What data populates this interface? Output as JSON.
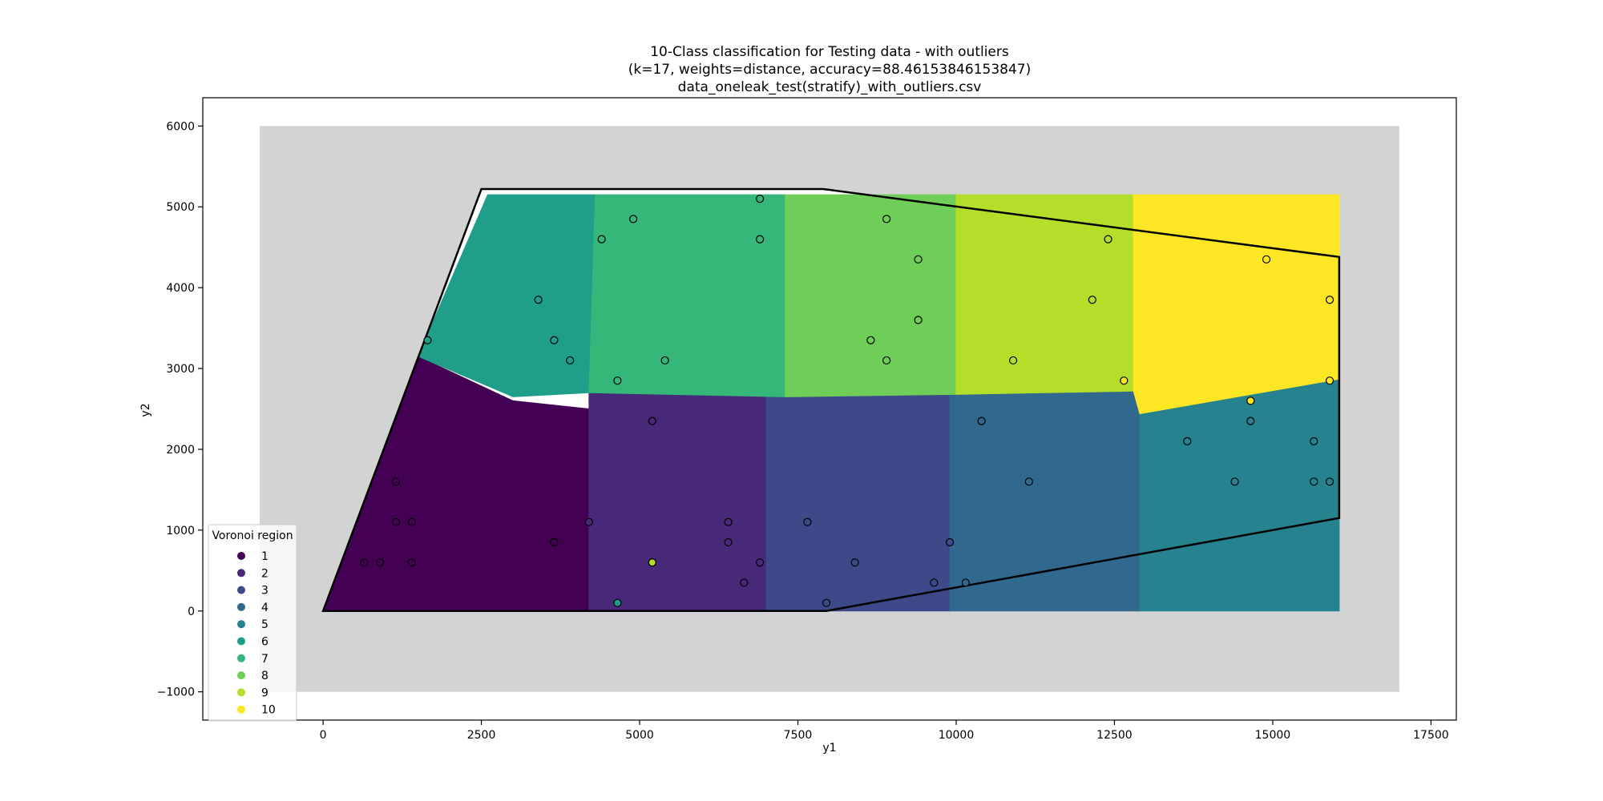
{
  "chart_data": {
    "type": "scatter",
    "title": "10-Class classification for Testing data - with outliers",
    "subtitle": "(k=17, weights=distance, accuracy=88.46153846153847)",
    "caption": "data_oneleak_test(stratify)_with_outliers.csv",
    "xlabel": "y1",
    "ylabel": "y2",
    "xlim": [
      -1900,
      17900
    ],
    "ylim": [
      -1350,
      6350
    ],
    "x_ticks": [
      0,
      2500,
      5000,
      7500,
      10000,
      12500,
      15000,
      17500
    ],
    "x_tick_labels": [
      "0",
      "2500",
      "5000",
      "7500",
      "10000",
      "12500",
      "15000",
      "17500"
    ],
    "y_ticks": [
      -1000,
      0,
      1000,
      2000,
      3000,
      4000,
      5000,
      6000
    ],
    "y_tick_labels": [
      "−1000",
      "0",
      "1000",
      "2000",
      "3000",
      "4000",
      "5000",
      "6000"
    ],
    "grid": false,
    "background_region": {
      "x": [
        -1000,
        17000
      ],
      "y": [
        -1000,
        6000
      ],
      "color": "#d3d3d3"
    },
    "boundary_polygon": [
      [
        0,
        0
      ],
      [
        2500,
        5220
      ],
      [
        7900,
        5220
      ],
      [
        16050,
        4380
      ],
      [
        16050,
        1150
      ],
      [
        7950,
        0
      ]
    ],
    "legend": {
      "title": "Voronoi region",
      "placement": "lower-left",
      "entries": [
        "1",
        "2",
        "3",
        "4",
        "5",
        "6",
        "7",
        "8",
        "9",
        "10"
      ]
    },
    "class_colors": {
      "1": "#440154",
      "2": "#482878",
      "3": "#3e4989",
      "4": "#31688e",
      "5": "#26828e",
      "6": "#1f9e89",
      "7": "#35b779",
      "8": "#6ece58",
      "9": "#b5de2b",
      "10": "#fde725"
    },
    "regions": [
      {
        "class": "1",
        "polygon": [
          [
            0,
            0
          ],
          [
            4200,
            0
          ],
          [
            4200,
            2500
          ],
          [
            3000,
            2600
          ],
          [
            1500,
            3150
          ],
          [
            1500,
            3150
          ]
        ]
      },
      {
        "class": "2",
        "polygon": [
          [
            4200,
            0
          ],
          [
            7000,
            0
          ],
          [
            7000,
            2700
          ],
          [
            4200,
            2700
          ]
        ]
      },
      {
        "class": "3",
        "polygon": [
          [
            7000,
            0
          ],
          [
            9900,
            0
          ],
          [
            10000,
            800
          ],
          [
            9900,
            2700
          ],
          [
            7000,
            2700
          ]
        ]
      },
      {
        "class": "4",
        "polygon": [
          [
            9900,
            0
          ],
          [
            12900,
            0
          ],
          [
            12900,
            2720
          ],
          [
            9900,
            2720
          ]
        ]
      },
      {
        "class": "5",
        "polygon": [
          [
            12900,
            0
          ],
          [
            16050,
            0
          ],
          [
            16050,
            2870
          ],
          [
            13500,
            2720
          ],
          [
            12900,
            2440
          ]
        ]
      },
      {
        "class": "6",
        "polygon": [
          [
            1500,
            3150
          ],
          [
            2600,
            5150
          ],
          [
            4300,
            5150
          ],
          [
            4200,
            2700
          ],
          [
            3000,
            2650
          ]
        ]
      },
      {
        "class": "7",
        "polygon": [
          [
            4300,
            5150
          ],
          [
            7300,
            5150
          ],
          [
            7300,
            2650
          ],
          [
            4200,
            2700
          ]
        ]
      },
      {
        "class": "8",
        "polygon": [
          [
            7300,
            5150
          ],
          [
            10000,
            5150
          ],
          [
            10000,
            2680
          ],
          [
            7300,
            2650
          ]
        ]
      },
      {
        "class": "9",
        "polygon": [
          [
            10000,
            5150
          ],
          [
            12800,
            5150
          ],
          [
            12800,
            2720
          ],
          [
            10000,
            2680
          ]
        ]
      },
      {
        "class": "10",
        "polygon": [
          [
            12800,
            5150
          ],
          [
            16050,
            5150
          ],
          [
            16050,
            2870
          ],
          [
            12900,
            2440
          ],
          [
            12800,
            2720
          ]
        ]
      }
    ],
    "series": [
      {
        "class": "1",
        "points": [
          [
            650,
            600
          ],
          [
            900,
            600
          ],
          [
            1400,
            600
          ],
          [
            1150,
            1100
          ],
          [
            1400,
            1100
          ],
          [
            1150,
            1600
          ],
          [
            3650,
            850
          ]
        ]
      },
      {
        "class": "2",
        "points": [
          [
            4200,
            1100
          ],
          [
            5200,
            600
          ],
          [
            5200,
            2350
          ],
          [
            6400,
            1100
          ],
          [
            6400,
            850
          ],
          [
            6900,
            600
          ],
          [
            6650,
            350
          ]
        ]
      },
      {
        "class": "3",
        "points": [
          [
            7650,
            1100
          ],
          [
            8400,
            600
          ],
          [
            9900,
            850
          ],
          [
            9650,
            350
          ],
          [
            7950,
            100
          ]
        ]
      },
      {
        "class": "4",
        "points": [
          [
            10150,
            350
          ],
          [
            11150,
            1600
          ],
          [
            10400,
            2350
          ]
        ]
      },
      {
        "class": "5",
        "points": [
          [
            13650,
            2100
          ],
          [
            14400,
            1600
          ],
          [
            14650,
            2350
          ],
          [
            15650,
            1600
          ],
          [
            15650,
            2100
          ],
          [
            15900,
            1600
          ]
        ]
      },
      {
        "class": "6",
        "points": [
          [
            1650,
            3350
          ],
          [
            3400,
            3850
          ],
          [
            3650,
            3350
          ],
          [
            3900,
            3100
          ],
          [
            4650,
            100
          ]
        ]
      },
      {
        "class": "7",
        "points": [
          [
            4400,
            4600
          ],
          [
            4900,
            4850
          ],
          [
            4650,
            2850
          ],
          [
            5400,
            3100
          ],
          [
            6900,
            4600
          ],
          [
            6900,
            5100
          ]
        ]
      },
      {
        "class": "8",
        "points": [
          [
            8650,
            3350
          ],
          [
            8900,
            3100
          ],
          [
            8900,
            4850
          ],
          [
            9400,
            4350
          ],
          [
            9400,
            3600
          ]
        ]
      },
      {
        "class": "9",
        "points": [
          [
            10900,
            3100
          ],
          [
            12150,
            3850
          ],
          [
            12400,
            4600
          ],
          [
            5200,
            600
          ]
        ]
      },
      {
        "class": "10",
        "points": [
          [
            12650,
            2850
          ],
          [
            14900,
            4350
          ],
          [
            15900,
            3850
          ],
          [
            15900,
            2850
          ],
          [
            14650,
            2600
          ]
        ]
      }
    ]
  }
}
